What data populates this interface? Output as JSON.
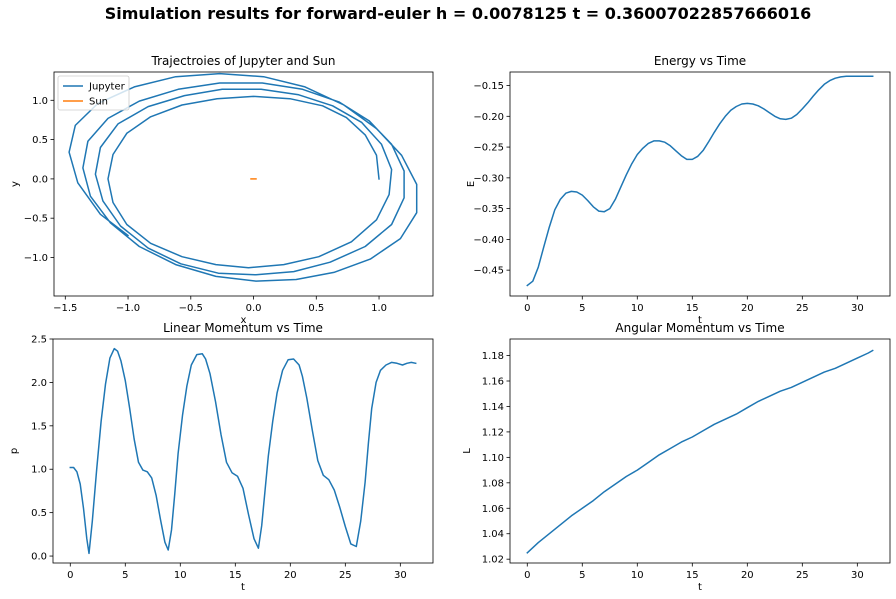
{
  "figure": {
    "title": "Simulation results for forward-euler h = 0.0078125 t = 0.36007022857666016"
  },
  "colors": {
    "blue": "#1f77b4",
    "orange": "#ff7f0e"
  },
  "chart_data": [
    {
      "id": "traj",
      "type": "line",
      "title": "Trajectroies of Jupyter and Sun",
      "xlabel": "x",
      "ylabel": "y",
      "xlim": [
        -1.59,
        1.43
      ],
      "ylim": [
        -1.49,
        1.36
      ],
      "xticks": [
        -1.5,
        -1.0,
        -0.5,
        0.0,
        0.5,
        1.0
      ],
      "xtick_labels": [
        "−1.5",
        "−1.0",
        "−0.5",
        "0.0",
        "0.5",
        "1.0"
      ],
      "yticks": [
        -1.0,
        -0.5,
        0.0,
        0.5,
        1.0
      ],
      "ytick_labels": [
        "−1.0",
        "−0.5",
        "0.0",
        "0.5",
        "1.0"
      ],
      "legend": "upper-left",
      "grid": false,
      "series": [
        {
          "name": "Jupyter",
          "color": "#1f77b4",
          "x": [
            1.0,
            0.98,
            0.89,
            0.74,
            0.55,
            0.29,
            0.0,
            -0.29,
            -0.57,
            -0.82,
            -1.01,
            -1.12,
            -1.16,
            -1.12,
            -1.01,
            -0.82,
            -0.57,
            -0.3,
            -0.04,
            0.24,
            0.52,
            0.78,
            0.98,
            1.08,
            1.1,
            1.02,
            0.86,
            0.63,
            0.36,
            0.06,
            -0.25,
            -0.55,
            -0.84,
            -1.08,
            -1.22,
            -1.26,
            -1.2,
            -1.06,
            -0.84,
            -0.58,
            -0.28,
            0.02,
            0.32,
            0.61,
            0.89,
            1.1,
            1.2,
            1.2,
            1.1,
            0.92,
            0.68,
            0.39,
            0.07,
            -0.27,
            -0.6,
            -0.91,
            -1.16,
            -1.32,
            -1.36,
            -1.3,
            -1.14,
            -0.91,
            -0.62,
            -0.3,
            0.02,
            0.34,
            0.64,
            0.93,
            1.17,
            1.3,
            1.3,
            1.18,
            0.98,
            0.72,
            0.41,
            0.08,
            -0.27,
            -0.62,
            -0.95,
            -1.24,
            -1.42,
            -1.47,
            -1.4,
            -1.22,
            -1.0
          ],
          "y": [
            0.0,
            0.3,
            0.56,
            0.78,
            0.93,
            1.02,
            1.05,
            1.02,
            0.94,
            0.79,
            0.58,
            0.31,
            0.0,
            -0.3,
            -0.58,
            -0.82,
            -0.99,
            -1.09,
            -1.13,
            -1.09,
            -0.99,
            -0.8,
            -0.52,
            -0.2,
            0.12,
            0.44,
            0.72,
            0.93,
            1.07,
            1.14,
            1.14,
            1.06,
            0.92,
            0.7,
            0.4,
            0.06,
            -0.28,
            -0.6,
            -0.88,
            -1.08,
            -1.2,
            -1.22,
            -1.18,
            -1.06,
            -0.86,
            -0.58,
            -0.24,
            0.1,
            0.44,
            0.74,
            0.98,
            1.14,
            1.22,
            1.22,
            1.14,
            0.99,
            0.77,
            0.48,
            0.14,
            -0.22,
            -0.56,
            -0.86,
            -1.09,
            -1.24,
            -1.3,
            -1.28,
            -1.19,
            -1.02,
            -0.76,
            -0.43,
            -0.07,
            0.3,
            0.64,
            0.94,
            1.17,
            1.3,
            1.34,
            1.3,
            1.17,
            0.96,
            0.68,
            0.34,
            -0.05,
            -0.45,
            -0.72
          ]
        },
        {
          "name": "Sun",
          "color": "#ff7f0e",
          "x": [
            -0.02,
            -0.01,
            0.0,
            0.01,
            0.02
          ],
          "y": [
            0.0,
            0.0,
            0.0,
            0.0,
            0.0
          ]
        }
      ]
    },
    {
      "id": "energy",
      "type": "line",
      "title": "Energy vs Time",
      "xlabel": "t",
      "ylabel": "E",
      "xlim": [
        -1.57,
        32.97
      ],
      "ylim": [
        -0.492,
        -0.128
      ],
      "xticks": [
        0,
        5,
        10,
        15,
        20,
        25,
        30
      ],
      "xtick_labels": [
        "0",
        "5",
        "10",
        "15",
        "20",
        "25",
        "30"
      ],
      "yticks": [
        -0.45,
        -0.4,
        -0.35,
        -0.3,
        -0.25,
        -0.2,
        -0.15
      ],
      "ytick_labels": [
        "−0.45",
        "−0.40",
        "−0.35",
        "−0.30",
        "−0.25",
        "−0.20",
        "−0.15"
      ],
      "grid": false,
      "series": [
        {
          "color": "#1f77b4",
          "x": [
            0.0,
            0.5,
            1.0,
            1.5,
            2.0,
            2.5,
            3.0,
            3.5,
            4.0,
            4.5,
            5.0,
            5.5,
            6.0,
            6.5,
            7.0,
            7.5,
            8.0,
            8.5,
            9.0,
            9.5,
            10.0,
            10.5,
            11.0,
            11.5,
            12.0,
            12.5,
            13.0,
            13.5,
            14.0,
            14.5,
            15.0,
            15.5,
            16.0,
            16.5,
            17.0,
            17.5,
            18.0,
            18.5,
            19.0,
            19.5,
            20.0,
            20.5,
            21.0,
            21.5,
            22.0,
            22.5,
            23.0,
            23.5,
            24.0,
            24.5,
            25.0,
            25.5,
            26.0,
            26.5,
            27.0,
            27.5,
            28.0,
            28.5,
            29.0,
            29.5,
            30.0,
            30.5,
            31.0,
            31.4
          ],
          "y": [
            -0.475,
            -0.468,
            -0.445,
            -0.412,
            -0.38,
            -0.352,
            -0.335,
            -0.325,
            -0.322,
            -0.323,
            -0.328,
            -0.337,
            -0.347,
            -0.354,
            -0.355,
            -0.35,
            -0.335,
            -0.315,
            -0.295,
            -0.277,
            -0.262,
            -0.252,
            -0.244,
            -0.24,
            -0.24,
            -0.242,
            -0.248,
            -0.256,
            -0.264,
            -0.27,
            -0.27,
            -0.265,
            -0.255,
            -0.241,
            -0.226,
            -0.212,
            -0.2,
            -0.19,
            -0.184,
            -0.18,
            -0.179,
            -0.18,
            -0.183,
            -0.188,
            -0.194,
            -0.2,
            -0.204,
            -0.205,
            -0.203,
            -0.197,
            -0.188,
            -0.178,
            -0.167,
            -0.157,
            -0.148,
            -0.142,
            -0.138,
            -0.136,
            -0.135,
            -0.135,
            -0.135,
            -0.135,
            -0.135,
            -0.135
          ]
        }
      ]
    },
    {
      "id": "linmom",
      "type": "line",
      "title": "Linear Momentum vs Time",
      "xlabel": "t",
      "ylabel": "p",
      "xlim": [
        -1.57,
        32.97
      ],
      "ylim": [
        -0.08,
        2.5
      ],
      "xticks": [
        0,
        5,
        10,
        15,
        20,
        25,
        30
      ],
      "xtick_labels": [
        "0",
        "5",
        "10",
        "15",
        "20",
        "25",
        "30"
      ],
      "yticks": [
        0.0,
        0.5,
        1.0,
        1.5,
        2.0,
        2.5
      ],
      "ytick_labels": [
        "0.0",
        "0.5",
        "1.0",
        "1.5",
        "2.0",
        "2.5"
      ],
      "grid": false,
      "series": [
        {
          "color": "#1f77b4",
          "x": [
            0.0,
            0.3,
            0.6,
            0.9,
            1.2,
            1.5,
            1.7,
            2.0,
            2.4,
            2.8,
            3.2,
            3.6,
            4.0,
            4.3,
            4.6,
            5.0,
            5.4,
            5.8,
            6.2,
            6.6,
            7.0,
            7.4,
            7.8,
            8.2,
            8.6,
            8.9,
            9.2,
            9.5,
            9.8,
            10.2,
            10.6,
            11.0,
            11.5,
            12.0,
            12.3,
            12.7,
            13.2,
            13.7,
            14.2,
            14.7,
            15.2,
            15.7,
            16.2,
            16.7,
            17.1,
            17.4,
            17.7,
            18.0,
            18.4,
            18.8,
            19.3,
            19.8,
            20.3,
            20.8,
            21.1,
            21.5,
            22.0,
            22.5,
            23.0,
            23.5,
            24.0,
            24.5,
            25.0,
            25.5,
            26.0,
            26.4,
            26.8,
            27.1,
            27.4,
            27.8,
            28.2,
            28.7,
            29.2,
            29.7,
            30.2,
            30.6,
            31.0,
            31.4
          ],
          "y": [
            1.02,
            1.02,
            0.97,
            0.83,
            0.55,
            0.2,
            0.03,
            0.4,
            1.0,
            1.55,
            1.98,
            2.28,
            2.39,
            2.36,
            2.25,
            2.02,
            1.7,
            1.35,
            1.08,
            0.99,
            0.97,
            0.9,
            0.7,
            0.42,
            0.16,
            0.07,
            0.3,
            0.72,
            1.18,
            1.62,
            1.96,
            2.2,
            2.32,
            2.33,
            2.27,
            2.1,
            1.78,
            1.4,
            1.08,
            0.96,
            0.92,
            0.78,
            0.48,
            0.2,
            0.09,
            0.35,
            0.75,
            1.15,
            1.55,
            1.88,
            2.14,
            2.26,
            2.27,
            2.2,
            2.07,
            1.82,
            1.45,
            1.1,
            0.93,
            0.88,
            0.76,
            0.56,
            0.34,
            0.14,
            0.11,
            0.4,
            0.85,
            1.3,
            1.7,
            2.0,
            2.14,
            2.2,
            2.23,
            2.22,
            2.2,
            2.22,
            2.23,
            2.22
          ]
        }
      ]
    },
    {
      "id": "angmom",
      "type": "line",
      "title": "Angular Momentum vs Time",
      "xlabel": "t",
      "ylabel": "L",
      "xlim": [
        -1.57,
        32.97
      ],
      "ylim": [
        1.017,
        1.193
      ],
      "xticks": [
        0,
        5,
        10,
        15,
        20,
        25,
        30
      ],
      "xtick_labels": [
        "0",
        "5",
        "10",
        "15",
        "20",
        "25",
        "30"
      ],
      "yticks": [
        1.02,
        1.04,
        1.06,
        1.08,
        1.1,
        1.12,
        1.14,
        1.16,
        1.18
      ],
      "ytick_labels": [
        "1.02",
        "1.04",
        "1.06",
        "1.08",
        "1.10",
        "1.12",
        "1.14",
        "1.16",
        "1.18"
      ],
      "grid": false,
      "series": [
        {
          "color": "#1f77b4",
          "x": [
            0.0,
            1.0,
            2.0,
            3.0,
            4.0,
            5.0,
            6.0,
            7.0,
            8.0,
            9.0,
            10.0,
            11.0,
            12.0,
            13.0,
            14.0,
            15.0,
            16.0,
            17.0,
            18.0,
            19.0,
            20.0,
            21.0,
            22.0,
            23.0,
            24.0,
            25.0,
            26.0,
            27.0,
            28.0,
            29.0,
            30.0,
            31.0,
            31.4
          ],
          "y": [
            1.025,
            1.033,
            1.04,
            1.047,
            1.054,
            1.06,
            1.066,
            1.073,
            1.079,
            1.085,
            1.09,
            1.096,
            1.102,
            1.107,
            1.112,
            1.116,
            1.121,
            1.126,
            1.13,
            1.134,
            1.139,
            1.144,
            1.148,
            1.152,
            1.155,
            1.159,
            1.163,
            1.167,
            1.17,
            1.174,
            1.178,
            1.182,
            1.184
          ]
        }
      ]
    }
  ]
}
